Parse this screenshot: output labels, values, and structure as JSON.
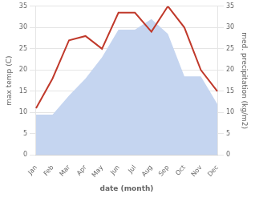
{
  "chart_data": {
    "type": "line",
    "xlabel": "date (month)",
    "ylabel": "max temp (C)",
    "y2label": "med. precipitation (kg/m2)",
    "categories": [
      "Jan",
      "Feb",
      "Mar",
      "Apr",
      "May",
      "Jun",
      "Jul",
      "Aug",
      "Sep",
      "Oct",
      "Nov",
      "Dec"
    ],
    "series": [
      {
        "type": "line",
        "color": "#c0392b",
        "values": [
          11.0,
          18.0,
          27.0,
          28.0,
          25.0,
          33.5,
          33.5,
          29.0,
          35.0,
          30.0,
          20.0,
          15.0
        ]
      },
      {
        "type": "area",
        "color": "#c5d5f0",
        "axis": "y2",
        "values": [
          9.5,
          9.5,
          14.0,
          18.0,
          23.0,
          29.5,
          29.5,
          32.0,
          28.5,
          18.5,
          18.5,
          12.0
        ]
      }
    ],
    "ylim": [
      0,
      35
    ],
    "yticks": [
      0,
      5,
      10,
      15,
      20,
      25,
      30,
      35
    ],
    "y2lim": [
      0,
      35
    ],
    "y2ticks": [
      0,
      5,
      10,
      15,
      20,
      25,
      30,
      35
    ],
    "grid": true
  }
}
